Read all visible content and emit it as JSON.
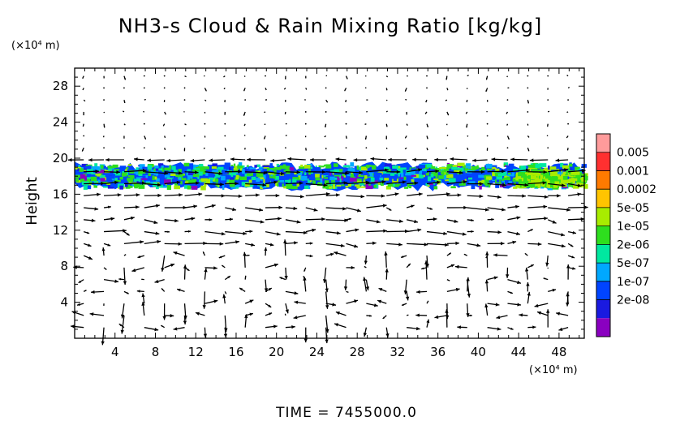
{
  "chart_data": {
    "type": "heatmap",
    "title": "NH3-s Cloud & Rain Mixing Ratio [kg/kg]",
    "ylabel": "Height",
    "y_unit": "(×10⁴ m)",
    "x_unit": "(×10⁴ m)",
    "x_ticks": [
      "4",
      "8",
      "12",
      "16",
      "20",
      "24",
      "28",
      "32",
      "36",
      "40",
      "44",
      "48"
    ],
    "y_ticks": [
      "4",
      "8",
      "12",
      "16",
      "20",
      "24",
      "28"
    ],
    "xlim": [
      0,
      50.5
    ],
    "ylim": [
      0,
      30
    ],
    "colorbar": {
      "labels": [
        "0.005",
        "0.001",
        "0.0002",
        "5e-05",
        "1e-05",
        "2e-06",
        "5e-07",
        "1e-07",
        "2e-08"
      ],
      "colors": [
        "#ff9b9b",
        "#ff3030",
        "#ff7a00",
        "#ffc400",
        "#a8ec00",
        "#2ede1e",
        "#00e8a0",
        "#00a8ff",
        "#0044ff",
        "#1a1ae0",
        "#8a00c0"
      ]
    },
    "cloud_layer": {
      "height_range": [
        16.5,
        19.6
      ],
      "x_range": [
        0,
        50.5
      ],
      "dominant_levels": [
        "1e-05",
        "2e-06",
        "5e-07",
        "1e-07"
      ]
    },
    "wind_field": {
      "type": "vector",
      "x_spacing": 2,
      "y_spacing": 1.33
    },
    "footer": "TIME  =  7455000.0"
  }
}
